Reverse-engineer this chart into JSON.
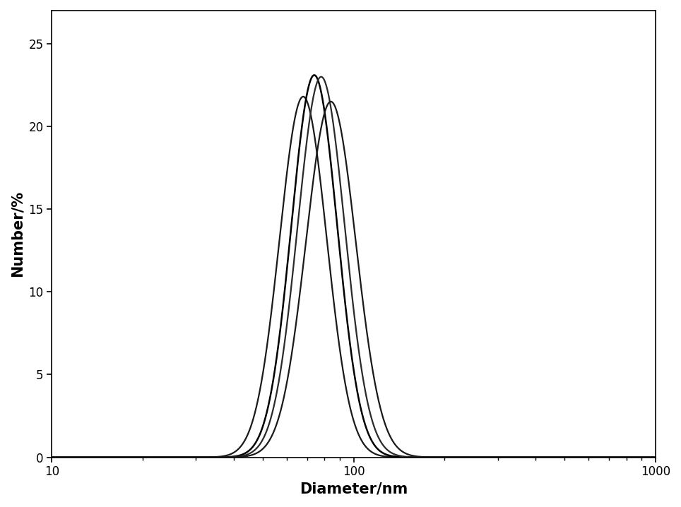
{
  "xlabel": "Diameter/nm",
  "ylabel": "Number/%",
  "xlim": [
    10,
    1000
  ],
  "ylim": [
    0,
    27
  ],
  "yticks": [
    0,
    5,
    10,
    15,
    20,
    25
  ],
  "background_color": "#ffffff",
  "curves": [
    {
      "peak": 68,
      "sigma": 0.18,
      "amplitude": 21.8,
      "color": "#1a1a1a",
      "lw": 1.6
    },
    {
      "peak": 74,
      "sigma": 0.175,
      "amplitude": 23.1,
      "color": "#000000",
      "lw": 1.8
    },
    {
      "peak": 78,
      "sigma": 0.18,
      "amplitude": 23.0,
      "color": "#2a2a2a",
      "lw": 1.6
    },
    {
      "peak": 84,
      "sigma": 0.19,
      "amplitude": 21.5,
      "color": "#1a1a1a",
      "lw": 1.6
    }
  ]
}
